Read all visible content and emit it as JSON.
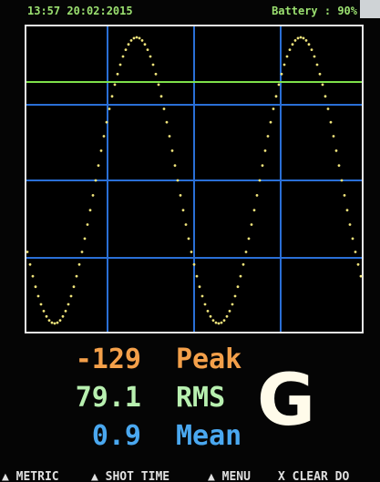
{
  "status": {
    "datetime": "13:57 20:02:2015",
    "battery": "Battery : 90%"
  },
  "readings": [
    {
      "value": "-129",
      "label": "Peak"
    },
    {
      "value": "79.1",
      "label": "RMS"
    },
    {
      "value": "0.9",
      "label": "Mean"
    }
  ],
  "badge": "G",
  "softkeys": [
    "▲ METRIC",
    "▲ SHOT TIME",
    "▲ MENU",
    "X CLEAR DO"
  ]
}
